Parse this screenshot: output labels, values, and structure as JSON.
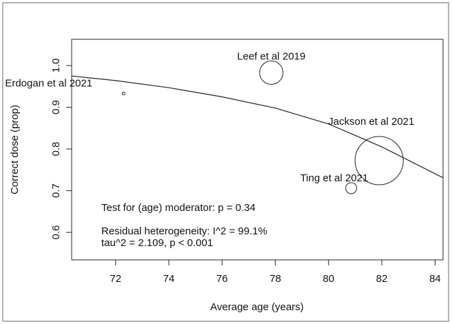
{
  "chart_data": {
    "type": "scatter",
    "x_label": "Average age (years)",
    "y_label": "Correct dose (prop)",
    "labels": [
      "Erdogan et al 2021",
      "Leef et al  2019",
      "Jackson et al 2021",
      "Ting et al 2021"
    ],
    "x": [
      72.3,
      77.85,
      81.9,
      80.85
    ],
    "values": [
      0.933,
      0.983,
      0.772,
      0.706
    ],
    "sizes": [
      4,
      289,
      1225,
      64
    ],
    "fit": {
      "x": [
        70.35,
        72,
        74,
        76,
        78,
        80,
        82,
        84.3
      ],
      "values": [
        0.975,
        0.964,
        0.947,
        0.925,
        0.898,
        0.86,
        0.805,
        0.731
      ]
    },
    "annotations": [
      "Test for (age) moderator: p = 0.34",
      "Residual heterogeneity: I^2 = 99.1%",
      "tau^2 = 2.109, p < 0.001"
    ],
    "xlim": [
      70.35,
      84.3
    ],
    "ylim": [
      0.534,
      1.063
    ],
    "xticks": [
      72,
      74,
      76,
      78,
      80,
      82,
      84
    ],
    "yticks": [
      0.6,
      0.7,
      0.8,
      0.9,
      {
        "value": 1,
        "label": "1.0"
      }
    ]
  }
}
